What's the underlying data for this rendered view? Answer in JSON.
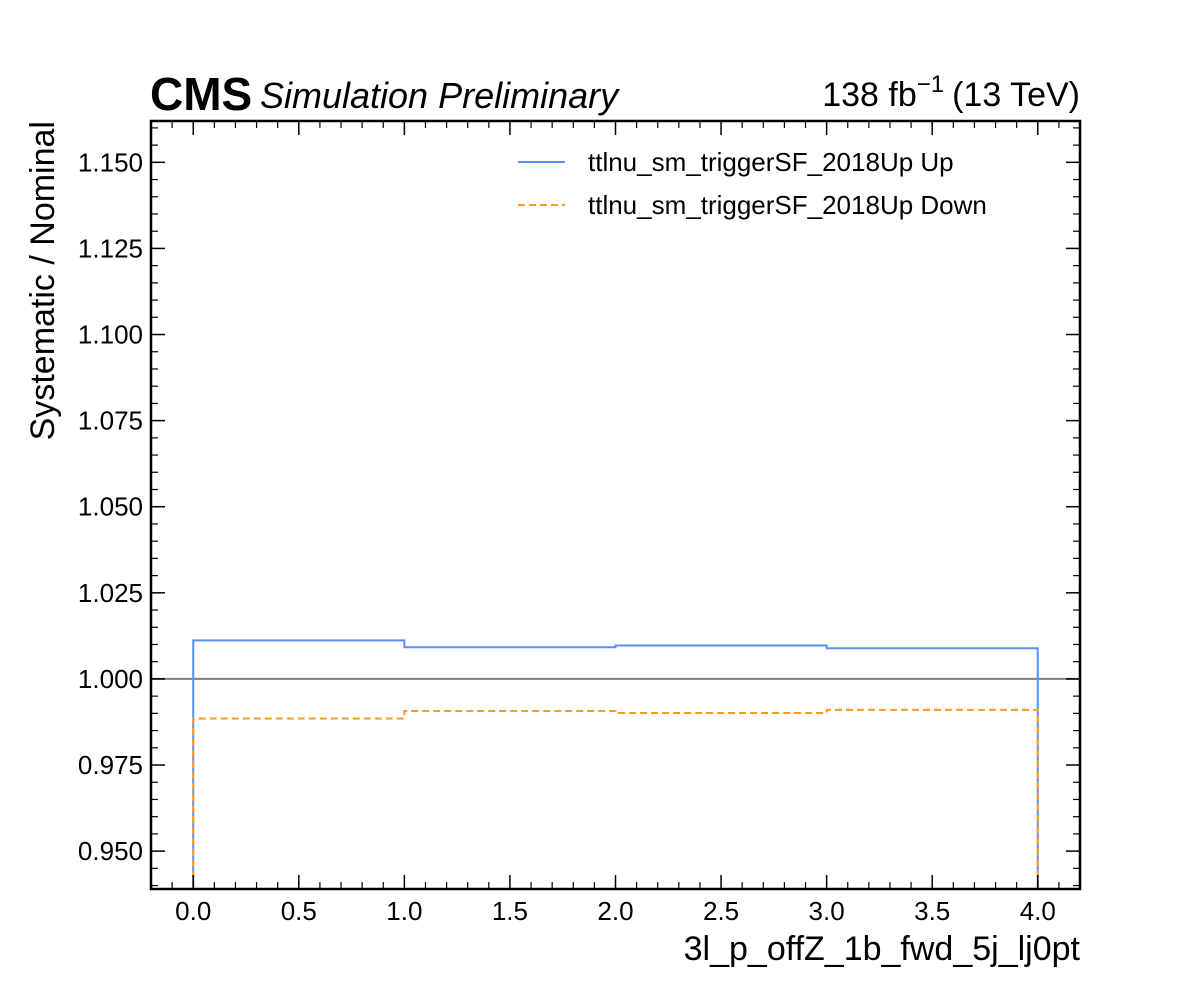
{
  "header": {
    "experiment": "CMS",
    "status": "Simulation Preliminary",
    "lumi_value": "138 fb",
    "lumi_exp": "−1",
    "energy": "(13 TeV)"
  },
  "chart_data": {
    "type": "line",
    "drawstyle": "steps",
    "xlabel": "3l_p_offZ_1b_fwd_5j_lj0pt",
    "ylabel": "Systematic / Nominal",
    "xlim": [
      -0.2,
      4.2
    ],
    "ylim": [
      0.939,
      1.162
    ],
    "x_ticks": [
      "0.0",
      "0.5",
      "1.0",
      "1.5",
      "2.0",
      "2.5",
      "3.0",
      "3.5",
      "4.0"
    ],
    "x_tick_values": [
      0,
      0.5,
      1,
      1.5,
      2,
      2.5,
      3,
      3.5,
      4
    ],
    "y_ticks": [
      "0.950",
      "0.975",
      "1.000",
      "1.025",
      "1.050",
      "1.075",
      "1.100",
      "1.125",
      "1.150"
    ],
    "y_tick_values": [
      0.95,
      0.975,
      1.0,
      1.025,
      1.05,
      1.075,
      1.1,
      1.125,
      1.15
    ],
    "bin_edges": [
      0,
      1,
      2,
      3,
      4
    ],
    "reference_line": 1.0,
    "series": [
      {
        "name": "ttlnu_sm_triggerSF_2018Up Up",
        "values": [
          1.0112,
          1.0092,
          1.0097,
          1.0089
        ],
        "color": "#5790fc",
        "dashed": false
      },
      {
        "name": "ttlnu_sm_triggerSF_2018Up Down",
        "values": [
          0.9885,
          0.9907,
          0.9901,
          0.991
        ],
        "color": "#f89c20",
        "dashed": true
      }
    ],
    "legend_position": "top-right",
    "grid": false
  }
}
